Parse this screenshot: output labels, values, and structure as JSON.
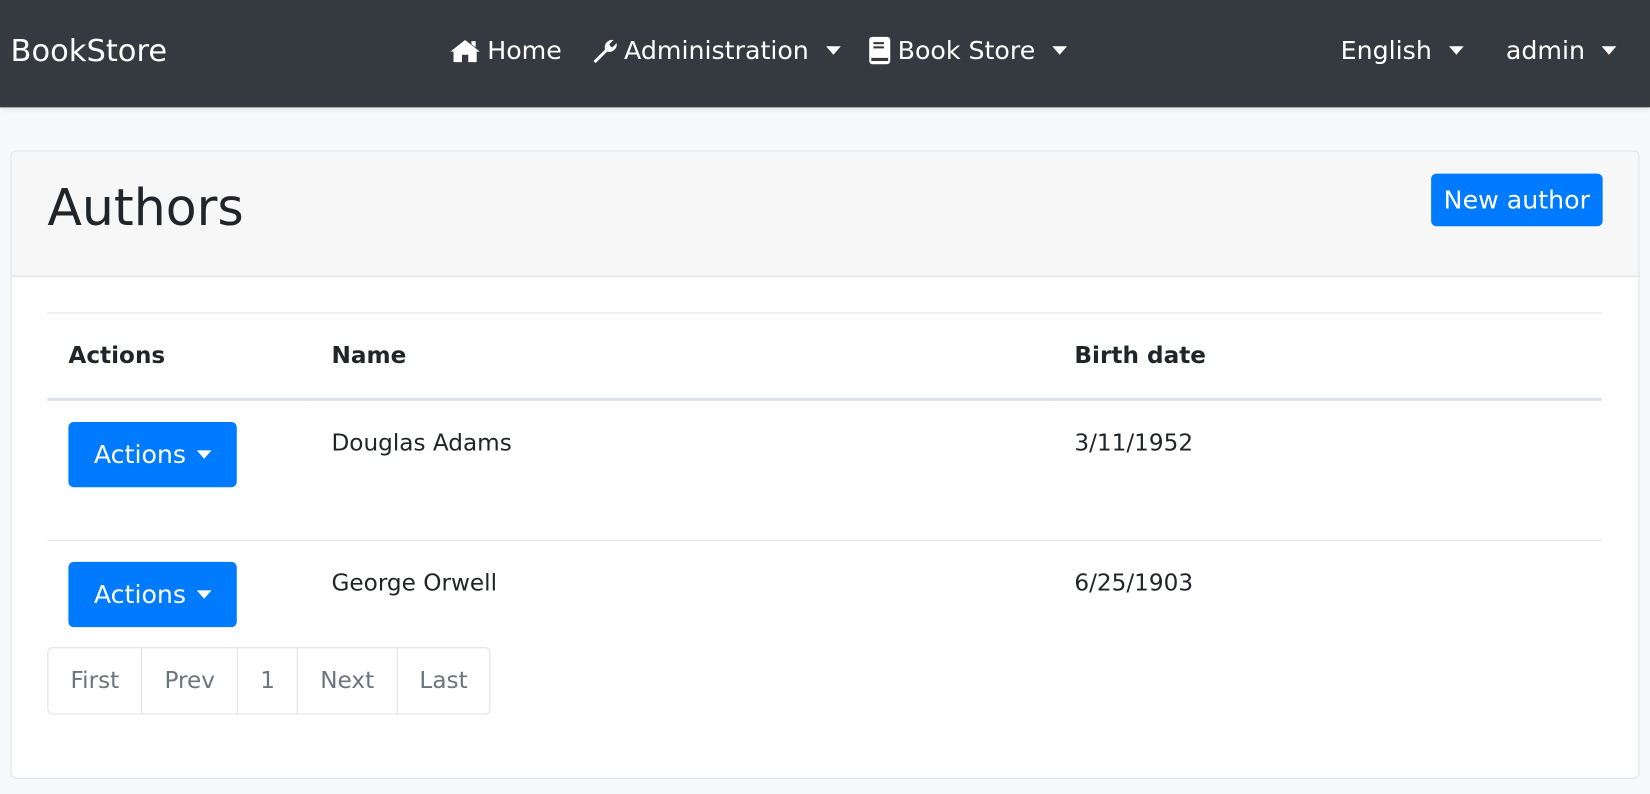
{
  "navbar": {
    "brand": "BookStore",
    "items": [
      {
        "label": "Home",
        "icon": "home-icon"
      },
      {
        "label": "Administration",
        "icon": "wrench-icon"
      },
      {
        "label": "Book Store",
        "icon": "book-icon"
      }
    ],
    "language": "English",
    "user": "admin"
  },
  "page": {
    "title": "Authors",
    "new_button": "New author"
  },
  "table": {
    "headers": [
      "Actions",
      "Name",
      "Birth date"
    ],
    "rows": [
      {
        "action": "Actions",
        "name": "Douglas Adams",
        "birth": "3/11/1952"
      },
      {
        "action": "Actions",
        "name": "George Orwell",
        "birth": "6/25/1903"
      }
    ]
  },
  "pagination": [
    "First",
    "Prev",
    "1",
    "Next",
    "Last"
  ],
  "colors": {
    "navbar": "#343a40",
    "primary": "#007bff"
  }
}
